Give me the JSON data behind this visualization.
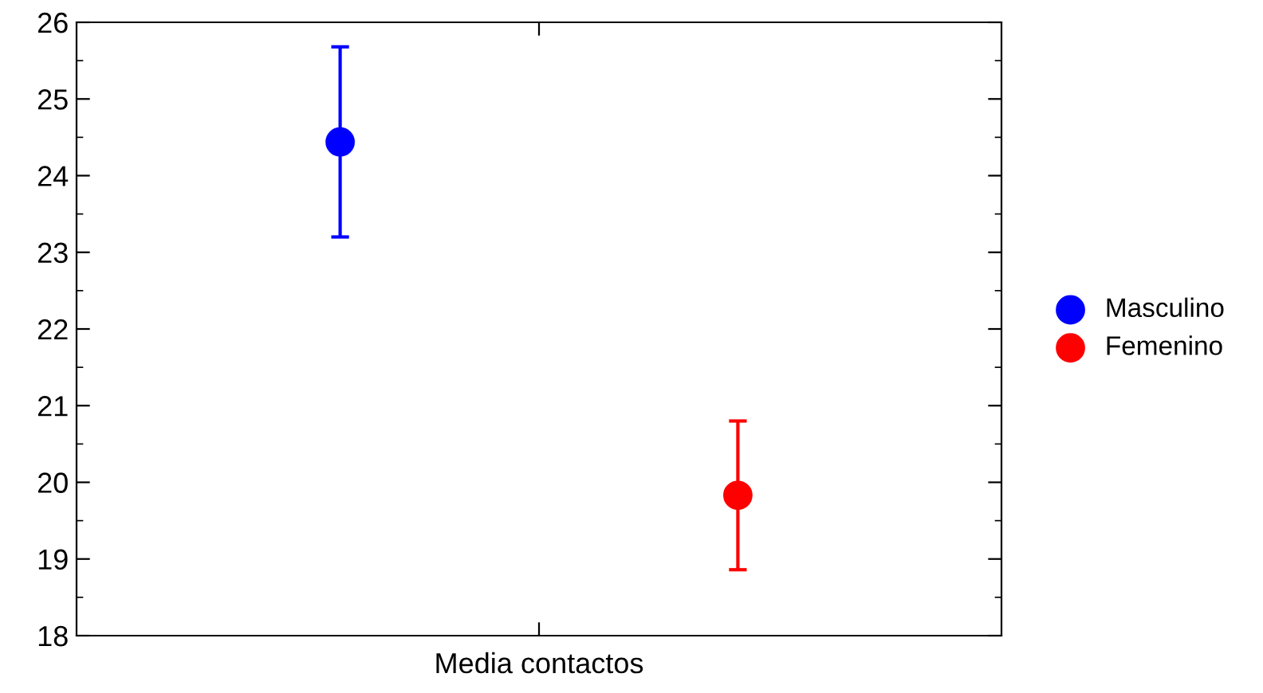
{
  "chart_data": {
    "type": "scatter",
    "xlabel": "Media contactos",
    "categories": [
      null
    ],
    "series": [
      {
        "name": "Masculino",
        "color": "#0000ff",
        "values": [
          24.44
        ],
        "errors": [
          1.24
        ]
      },
      {
        "name": "Femenino",
        "color": "#ff0000",
        "values": [
          19.83
        ],
        "errors": [
          0.97
        ]
      }
    ],
    "ylim": [
      18,
      26
    ],
    "yticks": [
      18,
      19,
      20,
      21,
      22,
      23,
      24,
      25,
      26
    ],
    "grid": false,
    "legend": "right",
    "marker": "circle"
  }
}
